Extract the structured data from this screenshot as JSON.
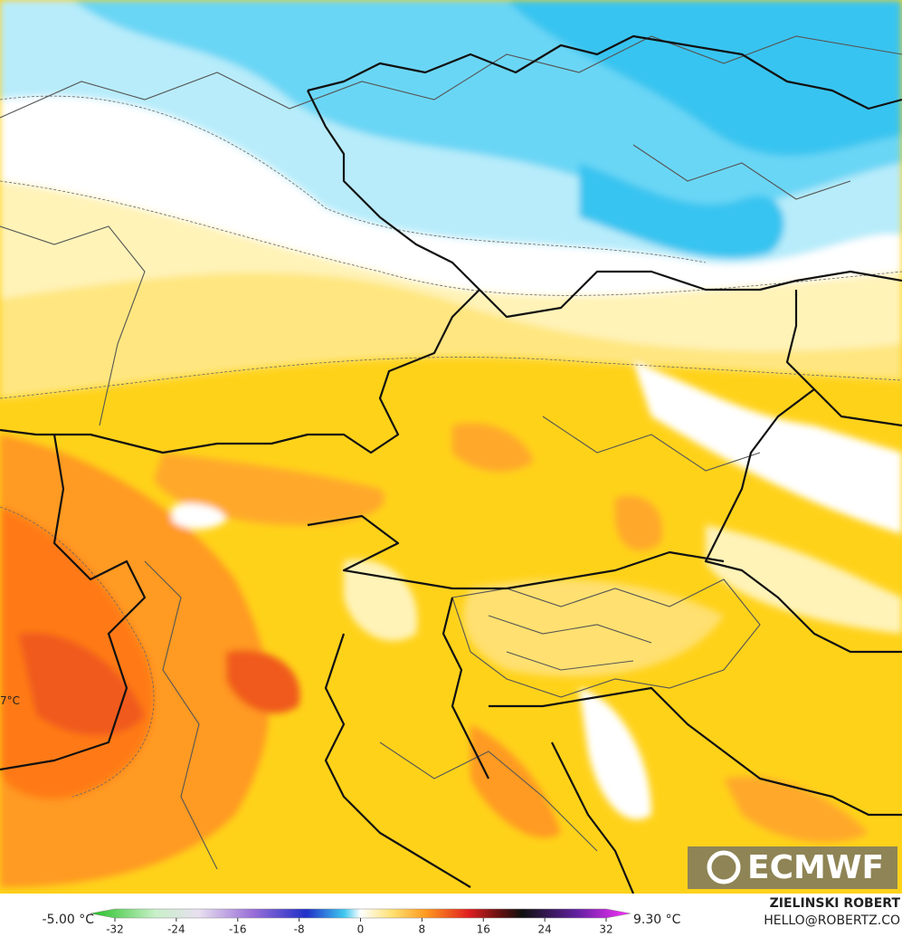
{
  "map": {
    "logo": "ECMWF",
    "inset_label": "7°C"
  },
  "colorbar": {
    "min_label": "-5.00 °C",
    "max_label": "9.30 °C",
    "lim": [
      -32,
      32
    ],
    "ticks": [
      -32,
      -24,
      -16,
      -8,
      0,
      8,
      16,
      24,
      32
    ]
  },
  "credit": {
    "name": "ZIELINSKI ROBERT",
    "email": "HELLO@ROBERTZ.CO"
  }
}
